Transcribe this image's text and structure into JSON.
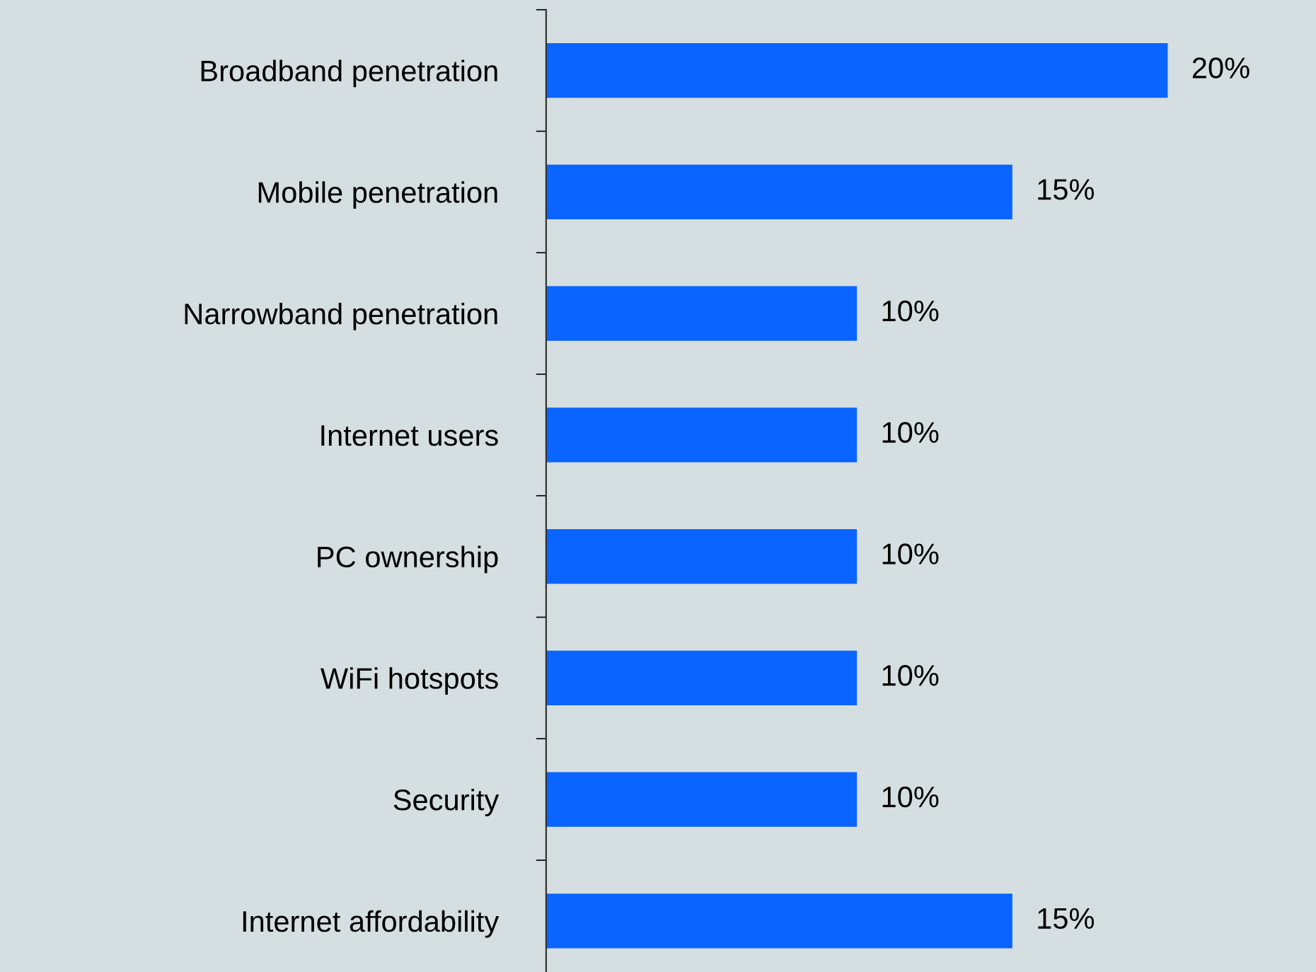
{
  "chart_data": {
    "type": "bar",
    "orientation": "horizontal",
    "categories": [
      "Broadband penetration",
      "Mobile penetration",
      "Narrowband penetration",
      "Internet users",
      "PC ownership",
      "WiFi hotspots",
      "Security",
      "Internet affordability"
    ],
    "values": [
      20,
      15,
      10,
      10,
      10,
      10,
      10,
      15
    ],
    "color": "#0a64ff",
    "value_labels": [
      "20%",
      "15%",
      "10%",
      "10%",
      "10%",
      "10%",
      "10%",
      "15%"
    ],
    "grid": false,
    "legend": false,
    "tick_labels": "y"
  }
}
